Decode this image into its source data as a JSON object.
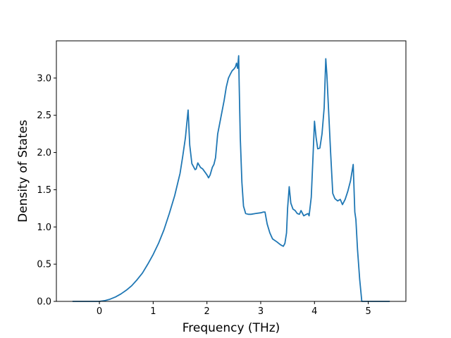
{
  "chart_data": {
    "type": "line",
    "title": "",
    "xlabel": "Frequency (THz)",
    "ylabel": "Density of States",
    "xlim": [
      -0.8,
      5.7
    ],
    "ylim": [
      0.0,
      3.5
    ],
    "xticks": [
      0,
      1,
      2,
      3,
      4,
      5
    ],
    "xtick_labels": [
      "0",
      "1",
      "2",
      "3",
      "4",
      "5"
    ],
    "yticks": [
      0.0,
      0.5,
      1.0,
      1.5,
      2.0,
      2.5,
      3.0
    ],
    "ytick_labels": [
      "0.0",
      "0.5",
      "1.0",
      "1.5",
      "2.0",
      "2.5",
      "3.0"
    ],
    "grid": false,
    "legend": "none",
    "series_color": "#1f77b4",
    "series": [
      {
        "x": [
          -0.5,
          -0.3,
          -0.1,
          0.0,
          0.1,
          0.2,
          0.3,
          0.4,
          0.5,
          0.6,
          0.7,
          0.8,
          0.9,
          1.0,
          1.1,
          1.2,
          1.3,
          1.4,
          1.5,
          1.55,
          1.6,
          1.62,
          1.65,
          1.68,
          1.72,
          1.78,
          1.8,
          1.83,
          1.88,
          1.92,
          1.96,
          2.0,
          2.03,
          2.06,
          2.1,
          2.13,
          2.16,
          2.2,
          2.24,
          2.28,
          2.32,
          2.36,
          2.4,
          2.44,
          2.47,
          2.5,
          2.53,
          2.55,
          2.57,
          2.59,
          2.6,
          2.62,
          2.65,
          2.68,
          2.72,
          2.77,
          2.82,
          2.9,
          3.0,
          3.05,
          3.08,
          3.12,
          3.17,
          3.22,
          3.3,
          3.37,
          3.42,
          3.45,
          3.48,
          3.5,
          3.53,
          3.56,
          3.6,
          3.64,
          3.68,
          3.72,
          3.75,
          3.8,
          3.85,
          3.88,
          3.9,
          3.94,
          3.97,
          4.0,
          4.03,
          4.06,
          4.1,
          4.14,
          4.18,
          4.21,
          4.23,
          4.26,
          4.3,
          4.34,
          4.38,
          4.43,
          4.48,
          4.52,
          4.57,
          4.62,
          4.67,
          4.72,
          4.75,
          4.77,
          4.8,
          4.84,
          4.88,
          4.91,
          5.0,
          5.2,
          5.4
        ],
        "y": [
          0.0,
          0.0,
          0.0,
          0.0,
          0.01,
          0.03,
          0.06,
          0.1,
          0.15,
          0.21,
          0.29,
          0.38,
          0.5,
          0.63,
          0.78,
          0.96,
          1.18,
          1.42,
          1.72,
          1.95,
          2.2,
          2.35,
          2.57,
          2.1,
          1.85,
          1.77,
          1.78,
          1.86,
          1.8,
          1.78,
          1.74,
          1.7,
          1.66,
          1.7,
          1.8,
          1.84,
          1.93,
          2.25,
          2.4,
          2.55,
          2.7,
          2.88,
          3.0,
          3.06,
          3.1,
          3.12,
          3.15,
          3.2,
          3.13,
          3.3,
          2.9,
          2.2,
          1.6,
          1.28,
          1.18,
          1.17,
          1.17,
          1.18,
          1.19,
          1.2,
          1.2,
          1.04,
          0.92,
          0.84,
          0.8,
          0.76,
          0.74,
          0.78,
          0.92,
          1.25,
          1.54,
          1.32,
          1.24,
          1.22,
          1.18,
          1.17,
          1.22,
          1.15,
          1.17,
          1.18,
          1.15,
          1.4,
          1.9,
          2.42,
          2.2,
          2.05,
          2.06,
          2.25,
          2.6,
          3.26,
          3.05,
          2.6,
          2.0,
          1.45,
          1.38,
          1.35,
          1.37,
          1.3,
          1.37,
          1.48,
          1.62,
          1.84,
          1.2,
          1.1,
          0.7,
          0.3,
          0.0,
          0.0,
          0.0,
          0.0,
          0.0
        ]
      }
    ]
  }
}
